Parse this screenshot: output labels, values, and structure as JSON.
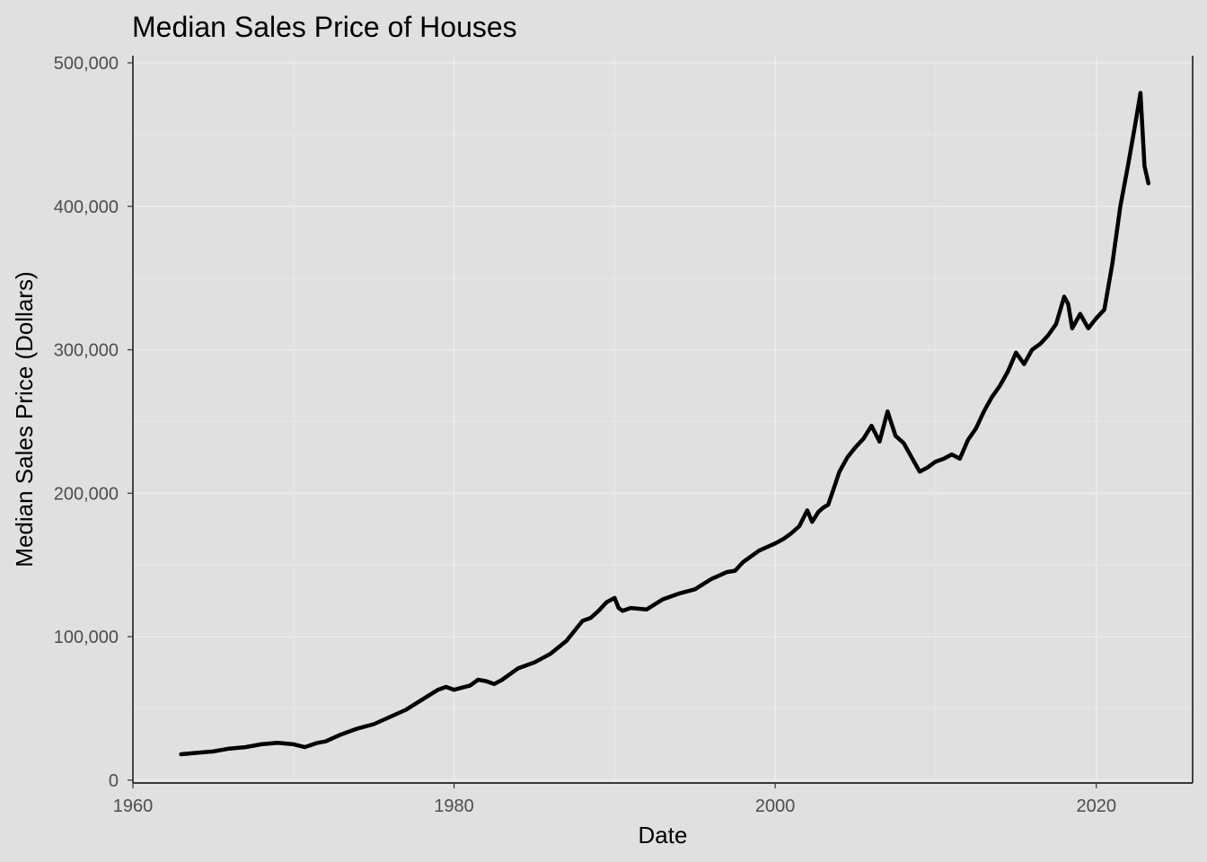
{
  "chart_data": {
    "type": "line",
    "title": "Median Sales Price of Houses",
    "xlabel": "Date",
    "ylabel": "Median Sales Price (Dollars)",
    "xlim": [
      1960,
      2026
    ],
    "ylim": [
      -2000,
      505000
    ],
    "x_ticks": [
      1960,
      1980,
      2000,
      2020
    ],
    "x_tick_labels": [
      "1960",
      "1980",
      "2000",
      "2020"
    ],
    "y_ticks": [
      0,
      100000,
      200000,
      300000,
      400000,
      500000
    ],
    "y_tick_labels": [
      "0",
      "100,000",
      "200,000",
      "300,000",
      "400,000",
      "500,000"
    ],
    "grid": true,
    "legend": "none",
    "line_color": "#000000",
    "series": [
      {
        "x": [
          1963.0,
          1964.0,
          1965.0,
          1966.0,
          1967.0,
          1968.0,
          1969.0,
          1970.0,
          1970.7,
          1971.5,
          1972.0,
          1973.0,
          1974.0,
          1975.0,
          1976.0,
          1977.0,
          1978.0,
          1979.0,
          1979.5,
          1980.0,
          1981.0,
          1981.5,
          1982.0,
          1982.5,
          1983.0,
          1984.0,
          1985.0,
          1986.0,
          1987.0,
          1988.0,
          1988.5,
          1989.0,
          1989.5,
          1990.0,
          1990.25,
          1990.5,
          1991.0,
          1992.0,
          1993.0,
          1994.0,
          1995.0,
          1996.0,
          1997.0,
          1997.5,
          1998.0,
          1999.0,
          2000.0,
          2000.5,
          2001.0,
          2001.5,
          2002.0,
          2002.3,
          2002.7,
          2003.0,
          2003.3,
          2003.7,
          2004.0,
          2004.5,
          2005.0,
          2005.5,
          2006.0,
          2006.5,
          2007.0,
          2007.5,
          2008.0,
          2008.5,
          2009.0,
          2009.5,
          2010.0,
          2010.5,
          2011.0,
          2011.5,
          2012.0,
          2012.5,
          2013.0,
          2013.5,
          2014.0,
          2014.5,
          2015.0,
          2015.5,
          2016.0,
          2016.5,
          2017.0,
          2017.5,
          2018.0,
          2018.25,
          2018.5,
          2019.0,
          2019.5,
          2020.0,
          2020.5,
          2021.0,
          2021.5,
          2022.0,
          2022.5,
          2022.75,
          2023.0,
          2023.25
        ],
        "values": [
          18000,
          19000,
          20000,
          22000,
          23000,
          25000,
          26000,
          25000,
          23000,
          26000,
          27000,
          32000,
          36000,
          39000,
          44000,
          49000,
          56000,
          63000,
          65000,
          63000,
          66000,
          70000,
          69000,
          67000,
          70000,
          78000,
          82000,
          88000,
          97000,
          111000,
          113000,
          118000,
          124000,
          127000,
          120000,
          118000,
          120000,
          119000,
          126000,
          130000,
          133000,
          140000,
          145000,
          146000,
          152000,
          160000,
          165000,
          168000,
          172000,
          177000,
          188000,
          180000,
          187000,
          190000,
          192000,
          205000,
          215000,
          225000,
          232000,
          238000,
          247000,
          236000,
          257000,
          240000,
          235000,
          225000,
          215000,
          218000,
          222000,
          224000,
          227000,
          224000,
          237000,
          245000,
          257000,
          267000,
          275000,
          285000,
          298000,
          290000,
          300000,
          304000,
          310000,
          318000,
          337000,
          332000,
          315000,
          325000,
          315000,
          322000,
          328000,
          360000,
          400000,
          430000,
          462000,
          479000,
          428000,
          416000
        ]
      }
    ]
  }
}
